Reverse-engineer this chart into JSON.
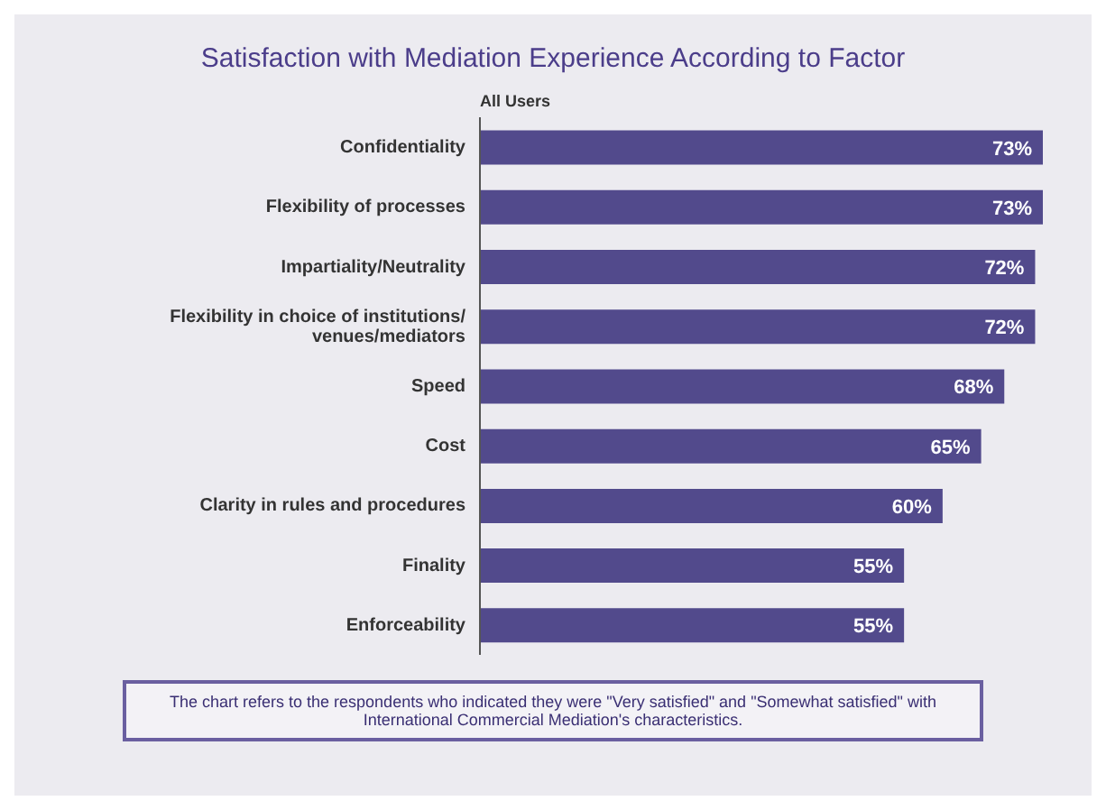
{
  "chart_data": {
    "type": "bar",
    "orientation": "horizontal",
    "title": "Satisfaction with Mediation Experience According to Factor",
    "categories": [
      "Confidentiality",
      "Flexibility of processes",
      "Impartiality/Neutrality",
      "Flexibility in choice of institutions/ venues/mediators",
      "Speed",
      "Cost",
      "Clarity in rules and procedures",
      "Finality",
      "Enforceability"
    ],
    "series": [
      {
        "name": "All Users",
        "color": "#524a8c",
        "values": [
          73,
          73,
          72,
          72,
          68,
          65,
          60,
          55,
          55
        ],
        "value_labels": [
          "73%",
          "73%",
          "72%",
          "72%",
          "68%",
          "65%",
          "60%",
          "55%",
          "55%"
        ]
      }
    ],
    "legend": "top",
    "annotations": [
      "The chart refers to the respondents who indicated they were \"Very satisfied\" and \"Somewhat satisfied\" with International Commercial Mediation's characteristics."
    ]
  }
}
